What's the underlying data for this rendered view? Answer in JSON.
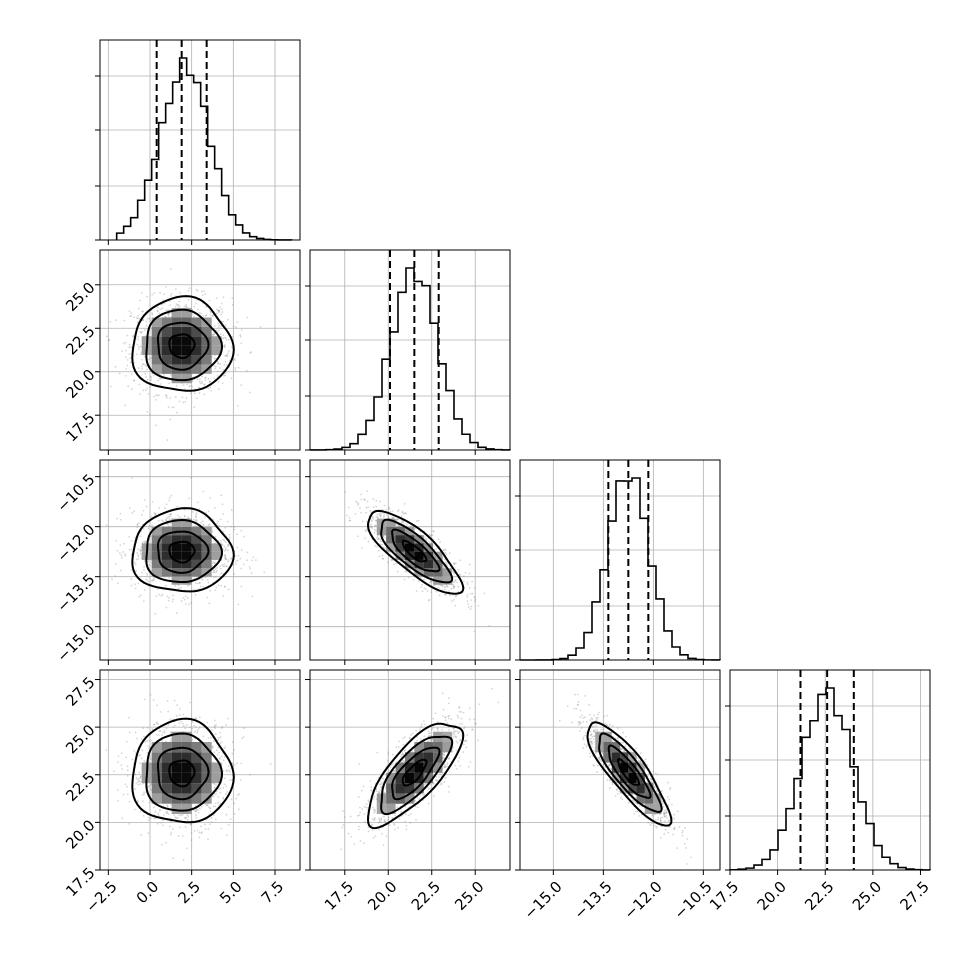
{
  "chart_data": {
    "type": "corner",
    "parameters": 4,
    "axes": [
      {
        "index": 0,
        "range": [
          -3.0,
          9.0
        ],
        "ticks": [
          -2.5,
          0.0,
          2.5,
          5.0,
          7.5
        ],
        "tick_labels": [
          "−2.5",
          "0.0",
          "2.5",
          "5.0",
          "7.5"
        ]
      },
      {
        "index": 1,
        "range": [
          15.5,
          27.0
        ],
        "ticks": [
          17.5,
          20.0,
          22.5,
          25.0
        ],
        "tick_labels": [
          "17.5",
          "20.0",
          "22.5",
          "25.0"
        ]
      },
      {
        "index": 2,
        "range": [
          -16.0,
          -10.0
        ],
        "ticks": [
          -15.0,
          -13.5,
          -12.0,
          -10.5
        ],
        "tick_labels": [
          "−15.0",
          "−13.5",
          "−12.0",
          "−10.5"
        ]
      },
      {
        "index": 3,
        "range": [
          17.5,
          28.0
        ],
        "ticks": [
          17.5,
          20.0,
          22.5,
          25.0,
          27.5
        ],
        "tick_labels": [
          "17.5",
          "20.0",
          "22.5",
          "25.0",
          "27.5"
        ]
      }
    ],
    "marginals": [
      {
        "param": 0,
        "mean": 1.9,
        "sigma": 1.5,
        "quantiles": [
          0.4,
          1.9,
          3.4
        ],
        "x_start": -2.0,
        "x_end": 8.5
      },
      {
        "param": 1,
        "mean": 21.5,
        "sigma": 1.35,
        "quantiles": [
          20.1,
          21.5,
          22.9
        ],
        "x_start": 15.5,
        "x_end": 27.0
      },
      {
        "param": 2,
        "mean": -12.75,
        "sigma": 0.62,
        "quantiles": [
          -13.35,
          -12.75,
          -12.15
        ],
        "x_start": -16.0,
        "x_end": -10.0
      },
      {
        "param": 3,
        "mean": 22.6,
        "sigma": 1.35,
        "quantiles": [
          21.2,
          22.6,
          24.0
        ],
        "x_start": 17.5,
        "x_end": 28.0
      }
    ],
    "correlations": {
      "0-1": 0.0,
      "0-2": 0.0,
      "0-3": 0.0,
      "1-2": -0.8,
      "1-3": 0.75,
      "2-3": -0.85
    },
    "contour_levels_sigma": [
      0.5,
      1.0,
      1.5,
      2.0
    ],
    "grid": true
  }
}
